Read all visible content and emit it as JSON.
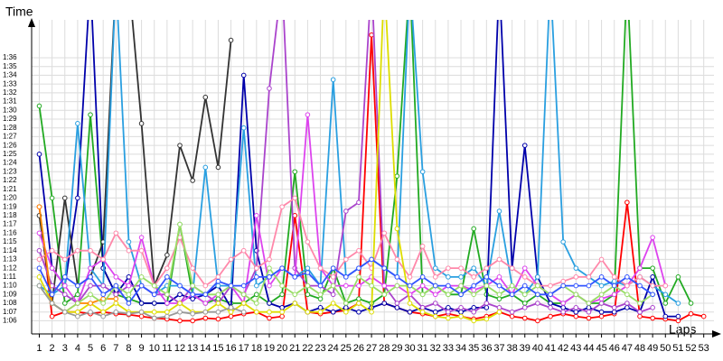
{
  "chart_data": {
    "type": "line",
    "y_label": "Time",
    "x_label": "Laps",
    "grid": true,
    "x": [
      1,
      2,
      3,
      4,
      5,
      6,
      7,
      8,
      9,
      10,
      11,
      12,
      13,
      14,
      15,
      16,
      17,
      18,
      19,
      20,
      21,
      22,
      23,
      24,
      25,
      26,
      27,
      28,
      29,
      30,
      31,
      32,
      33,
      34,
      35,
      36,
      37,
      38,
      39,
      40,
      41,
      42,
      43,
      44,
      45,
      46,
      47,
      48,
      49,
      50,
      51,
      52,
      53
    ],
    "xlim": [
      0.4,
      53.8
    ],
    "xticks": [
      1,
      2,
      3,
      4,
      5,
      6,
      7,
      8,
      9,
      10,
      11,
      12,
      13,
      14,
      15,
      16,
      17,
      18,
      19,
      20,
      21,
      22,
      23,
      24,
      25,
      26,
      27,
      28,
      29,
      30,
      31,
      32,
      33,
      34,
      35,
      36,
      37,
      38,
      39,
      40,
      41,
      42,
      43,
      44,
      45,
      46,
      47,
      48,
      49,
      50,
      51,
      52,
      53
    ],
    "ylim": [
      64.5,
      99.5
    ],
    "yticks": [
      {
        "value": 66,
        "label": "1:06"
      },
      {
        "value": 67,
        "label": "1:07"
      },
      {
        "value": 68,
        "label": "1:08"
      },
      {
        "value": 69,
        "label": "1:09"
      },
      {
        "value": 70,
        "label": "1:10"
      },
      {
        "value": 71,
        "label": "1:11"
      },
      {
        "value": 72,
        "label": "1:12"
      },
      {
        "value": 73,
        "label": "1:13"
      },
      {
        "value": 74,
        "label": "1:14"
      },
      {
        "value": 75,
        "label": "1:15"
      },
      {
        "value": 76,
        "label": "1:16"
      },
      {
        "value": 77,
        "label": "1:17"
      },
      {
        "value": 78,
        "label": "1:18"
      },
      {
        "value": 79,
        "label": "1:19"
      },
      {
        "value": 80,
        "label": "1:20"
      },
      {
        "value": 81,
        "label": "1:21"
      },
      {
        "value": 82,
        "label": "1:22"
      },
      {
        "value": 83,
        "label": "1:23"
      },
      {
        "value": 84,
        "label": "1:24"
      },
      {
        "value": 85,
        "label": "1:25"
      },
      {
        "value": 86,
        "label": "1:26"
      },
      {
        "value": 87,
        "label": "1:27"
      },
      {
        "value": 88,
        "label": "1:28"
      },
      {
        "value": 89,
        "label": "1:29"
      },
      {
        "value": 90,
        "label": "1:30"
      },
      {
        "value": 91,
        "label": "1:31"
      },
      {
        "value": 92,
        "label": "1:32"
      },
      {
        "value": 93,
        "label": "1:33"
      },
      {
        "value": 94,
        "label": "1:34"
      },
      {
        "value": 95,
        "label": "1:35"
      },
      {
        "value": 96,
        "label": "1:36"
      }
    ],
    "series": [
      {
        "color": "#ff0000",
        "values": [
          79,
          66.5,
          67,
          67,
          66.8,
          67,
          66.8,
          66.7,
          66.5,
          66.3,
          66.2,
          66,
          66,
          66.3,
          66.2,
          66.5,
          66.8,
          67,
          66.3,
          66.5,
          78,
          67,
          66.8,
          67,
          67.2,
          68,
          98.6,
          68,
          67.5,
          67,
          66.8,
          66.5,
          66.8,
          66.5,
          66.2,
          66.5,
          67,
          66.5,
          66.3,
          66,
          66.5,
          66.8,
          66.5,
          66.3,
          66.5,
          66.8,
          79.5,
          66.5,
          66.3,
          66.2,
          66,
          66.8,
          66.5
        ]
      },
      {
        "color": "#22aa22",
        "values": [
          90.5,
          80,
          68,
          69,
          89.5,
          72,
          69,
          68.5,
          68,
          68,
          68,
          77,
          69,
          68,
          68.5,
          68,
          68,
          69,
          68,
          69,
          83,
          69,
          68.5,
          72,
          68,
          68.5,
          68,
          69,
          82.5,
          105,
          69,
          70,
          69,
          69,
          76.5,
          69,
          68.5,
          69,
          68,
          69,
          68,
          68,
          69,
          68,
          68,
          69,
          105,
          72,
          72,
          68,
          71,
          68,
          null
        ]
      },
      {
        "color": "#0000aa",
        "values": [
          85,
          72,
          70,
          80,
          105,
          72,
          69,
          71,
          68,
          68,
          68,
          69,
          68.5,
          69,
          70,
          67.5,
          94,
          74,
          68,
          67.5,
          68,
          67,
          67.5,
          67,
          67.5,
          67,
          67.5,
          68,
          67.5,
          67,
          67.5,
          67,
          67.5,
          67,
          67.5,
          67.5,
          105,
          72,
          86,
          71,
          68,
          67.5,
          67,
          67.5,
          67,
          67,
          67.5,
          67,
          71,
          66.5,
          66.5,
          null,
          null
        ]
      },
      {
        "color": "#333333",
        "values": [
          78,
          68,
          80,
          70,
          71,
          75,
          105,
          105,
          88.5,
          70,
          73.5,
          86,
          82,
          91.5,
          83.5,
          98,
          null,
          null,
          null,
          null,
          null,
          null,
          null,
          null,
          null,
          null,
          null,
          null,
          null,
          null,
          null,
          null,
          null,
          null,
          null,
          null,
          null,
          null,
          null,
          null,
          null,
          null,
          null,
          null,
          null,
          null,
          null,
          null,
          null,
          null,
          null,
          null,
          null
        ]
      },
      {
        "color": "#2a9fe0",
        "values": [
          70,
          69,
          70,
          88.5,
          72,
          70,
          105,
          75,
          70,
          69,
          70,
          70,
          69,
          83.5,
          70,
          70,
          88,
          70,
          71,
          72,
          71,
          72,
          70,
          93.5,
          71,
          72,
          73,
          72,
          71,
          105,
          83,
          72,
          71,
          71,
          72,
          70,
          78.5,
          70,
          69,
          71,
          105,
          75,
          72,
          71,
          70,
          70.5,
          70,
          71,
          70,
          69,
          68,
          null,
          null
        ]
      },
      {
        "color": "#aa44cc",
        "values": [
          74,
          70,
          69,
          68,
          70,
          70,
          69,
          70,
          70,
          69,
          69,
          68,
          70,
          69,
          68,
          70,
          69,
          72,
          92.5,
          105,
          72,
          70,
          70,
          69,
          78.5,
          79.5,
          105,
          70,
          68,
          69,
          67.5,
          68,
          67,
          67.5,
          67,
          68,
          67.5,
          67,
          67.5,
          68,
          67.5,
          67,
          67.5,
          67,
          68,
          67.5,
          68,
          67,
          67.5,
          null,
          null,
          null,
          null
        ]
      },
      {
        "color": "#dd44ee",
        "values": [
          76,
          72,
          70,
          68,
          72,
          73,
          71,
          70,
          75.5,
          70,
          68,
          68,
          69,
          68,
          69,
          70,
          68,
          78,
          70,
          72,
          71,
          89.5,
          72,
          70,
          70,
          70,
          71,
          70,
          70,
          69,
          70,
          69,
          70,
          70,
          69.5,
          70,
          71,
          69,
          72,
          70,
          69,
          68,
          69,
          68,
          68.5,
          69,
          70,
          72,
          75.5,
          70,
          null,
          null,
          null
        ]
      },
      {
        "color": "#ff88aa",
        "values": [
          73,
          74,
          73,
          74,
          74,
          73,
          76,
          74,
          74,
          70,
          72,
          75.5,
          72,
          70,
          71,
          73,
          74,
          72,
          73,
          79,
          80,
          75,
          72,
          71,
          73,
          74,
          72,
          76,
          73,
          71,
          74.5,
          71,
          72,
          72,
          71,
          72,
          73,
          72,
          71,
          70,
          70,
          70.5,
          71,
          71,
          73,
          71,
          70,
          71,
          70,
          70,
          null,
          null,
          null
        ]
      },
      {
        "color": "#dddd00",
        "values": [
          71,
          68,
          67,
          67,
          68,
          67,
          68,
          67,
          67,
          67,
          67,
          68,
          67,
          67,
          68,
          67,
          68,
          67,
          67,
          67,
          68,
          67,
          67,
          68,
          67,
          68,
          67,
          105,
          76.5,
          68,
          67,
          66.5,
          66.3,
          66.5,
          66,
          66.2,
          67,
          null,
          null,
          null,
          null,
          null,
          null,
          null,
          null,
          null,
          null,
          null,
          null,
          null,
          null,
          null,
          null
        ]
      },
      {
        "color": "#ff8800",
        "values": [
          79,
          68,
          67,
          68,
          68,
          68.5,
          68.5,
          null,
          null,
          null,
          null,
          null,
          null,
          null,
          null,
          null,
          null,
          null,
          null,
          null,
          null,
          null,
          null,
          null,
          null,
          null,
          null,
          null,
          null,
          null,
          null,
          null,
          null,
          null,
          null,
          null,
          null,
          null,
          null,
          null,
          null,
          null,
          null,
          null,
          null,
          null,
          null,
          null,
          null,
          null,
          null,
          null,
          null
        ]
      },
      {
        "color": "#99dd66",
        "values": [
          70,
          68,
          67,
          68,
          69,
          68,
          70,
          69,
          71,
          70,
          69,
          77,
          70,
          69,
          69,
          70,
          69,
          68,
          72,
          70,
          69,
          70,
          69,
          70,
          68,
          71,
          70,
          69,
          70,
          70,
          69,
          70,
          69,
          70,
          69,
          70,
          69,
          70,
          69,
          70,
          69,
          70,
          69,
          68,
          69,
          70,
          69,
          68,
          69,
          null,
          null,
          null,
          null
        ]
      },
      {
        "color": "#999999",
        "values": [
          70,
          68,
          67,
          66.5,
          67,
          66.5,
          67,
          66.8,
          67,
          66.3,
          66.5,
          67,
          66.8,
          67,
          67,
          67.5,
          67,
          null,
          null,
          null,
          null,
          null,
          null,
          null,
          null,
          null,
          null,
          null,
          null,
          null,
          null,
          null,
          null,
          null,
          null,
          null,
          null,
          null,
          null,
          null,
          null,
          null,
          null,
          null,
          null,
          null,
          null,
          null,
          null,
          null,
          null,
          null,
          null
        ]
      },
      {
        "color": "#3355ff",
        "values": [
          72,
          69,
          71,
          70,
          71,
          69,
          70,
          68,
          70,
          69,
          71,
          70,
          69,
          69,
          70.5,
          70,
          70,
          71,
          71,
          72,
          71,
          71.5,
          70,
          72,
          71,
          72,
          73,
          72,
          71,
          70,
          71,
          70,
          70,
          69,
          70,
          71,
          70,
          69,
          70,
          69,
          69,
          70,
          70,
          70,
          71,
          70,
          71,
          70,
          69,
          null,
          null,
          null,
          null
        ]
      }
    ]
  }
}
